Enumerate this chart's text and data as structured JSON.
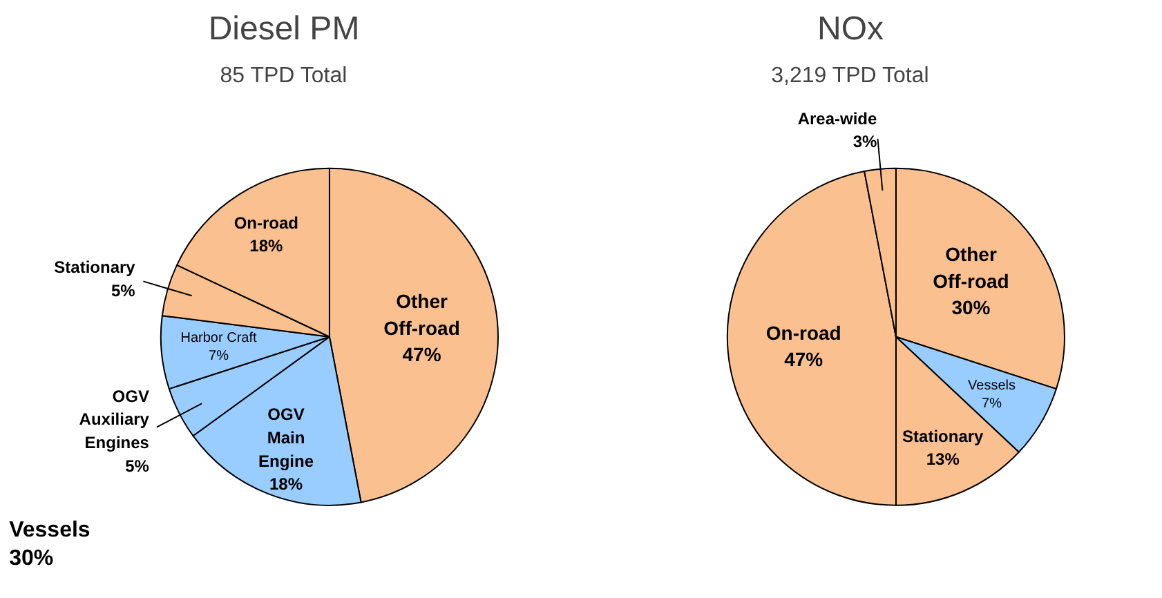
{
  "chart_data": [
    {
      "type": "pie",
      "title": "Diesel PM",
      "subtitle": "85 TPD Total",
      "categories": [
        "Other Off-road",
        "OGV Main Engine",
        "OGV Auxiliary Engines",
        "Harbor Craft",
        "Stationary",
        "On-road"
      ],
      "values": [
        47,
        18,
        5,
        7,
        5,
        18
      ],
      "colors": [
        "#fac090",
        "#99ccff",
        "#99ccff",
        "#99ccff",
        "#fac090",
        "#fac090"
      ],
      "value_labels": [
        "47%",
        "18%",
        "5%",
        "7%",
        "5%",
        "18%"
      ],
      "data_labels": true,
      "annotations": [
        "Vessels 30%"
      ]
    },
    {
      "type": "pie",
      "title": "NOx",
      "subtitle": "3,219 TPD Total",
      "categories": [
        "Other Off-road",
        "Vessels",
        "Stationary",
        "On-road",
        "Area-wide"
      ],
      "values": [
        30,
        7,
        13,
        47,
        3
      ],
      "colors": [
        "#fac090",
        "#99ccff",
        "#fac090",
        "#fac090",
        "#fac090"
      ],
      "value_labels": [
        "30%",
        "7%",
        "13%",
        "47%",
        "3%"
      ],
      "data_labels": true
    }
  ]
}
